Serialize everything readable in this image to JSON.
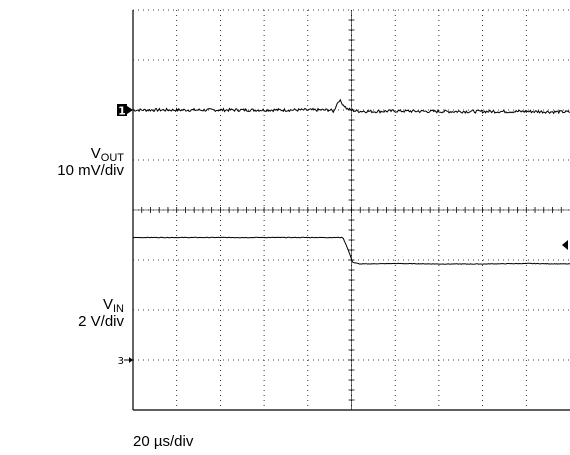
{
  "chart_data": {
    "type": "line",
    "title": "",
    "vout_label": {
      "main": "V",
      "sub": "OUT",
      "scale": "10 mV/div"
    },
    "vin_label": {
      "main": "V",
      "sub": "IN",
      "scale": "2 V/div"
    },
    "xlabel": "20 µs/div",
    "grid": true,
    "grid_divisions": {
      "x": 10,
      "y": 8
    },
    "xlim": [
      0,
      10
    ],
    "ylim": [
      0,
      8
    ],
    "channel_markers": [
      {
        "label": "1",
        "y": 6
      },
      {
        "label": "3",
        "y": 1
      }
    ],
    "trigger_level_y": 3.3,
    "series": [
      {
        "x": [
          0,
          4.5,
          4.6,
          4.65,
          4.72,
          4.8,
          4.9,
          5.1,
          5.5,
          6.0,
          7.0,
          8.0,
          9.0,
          10.0
        ],
        "y": [
          6.0,
          6.0,
          5.97,
          6.1,
          6.2,
          6.12,
          6.02,
          5.98,
          5.97,
          5.98,
          5.97,
          5.97,
          5.97,
          5.96
        ],
        "noise": 0.03
      },
      {
        "x": [
          0,
          4.8,
          4.88,
          5.03,
          5.2,
          6.0,
          7.0,
          8.0,
          9.0,
          10.0
        ],
        "y": [
          3.45,
          3.45,
          3.3,
          2.95,
          2.92,
          2.93,
          2.92,
          2.92,
          2.93,
          2.92
        ],
        "noise": 0.005
      }
    ]
  }
}
